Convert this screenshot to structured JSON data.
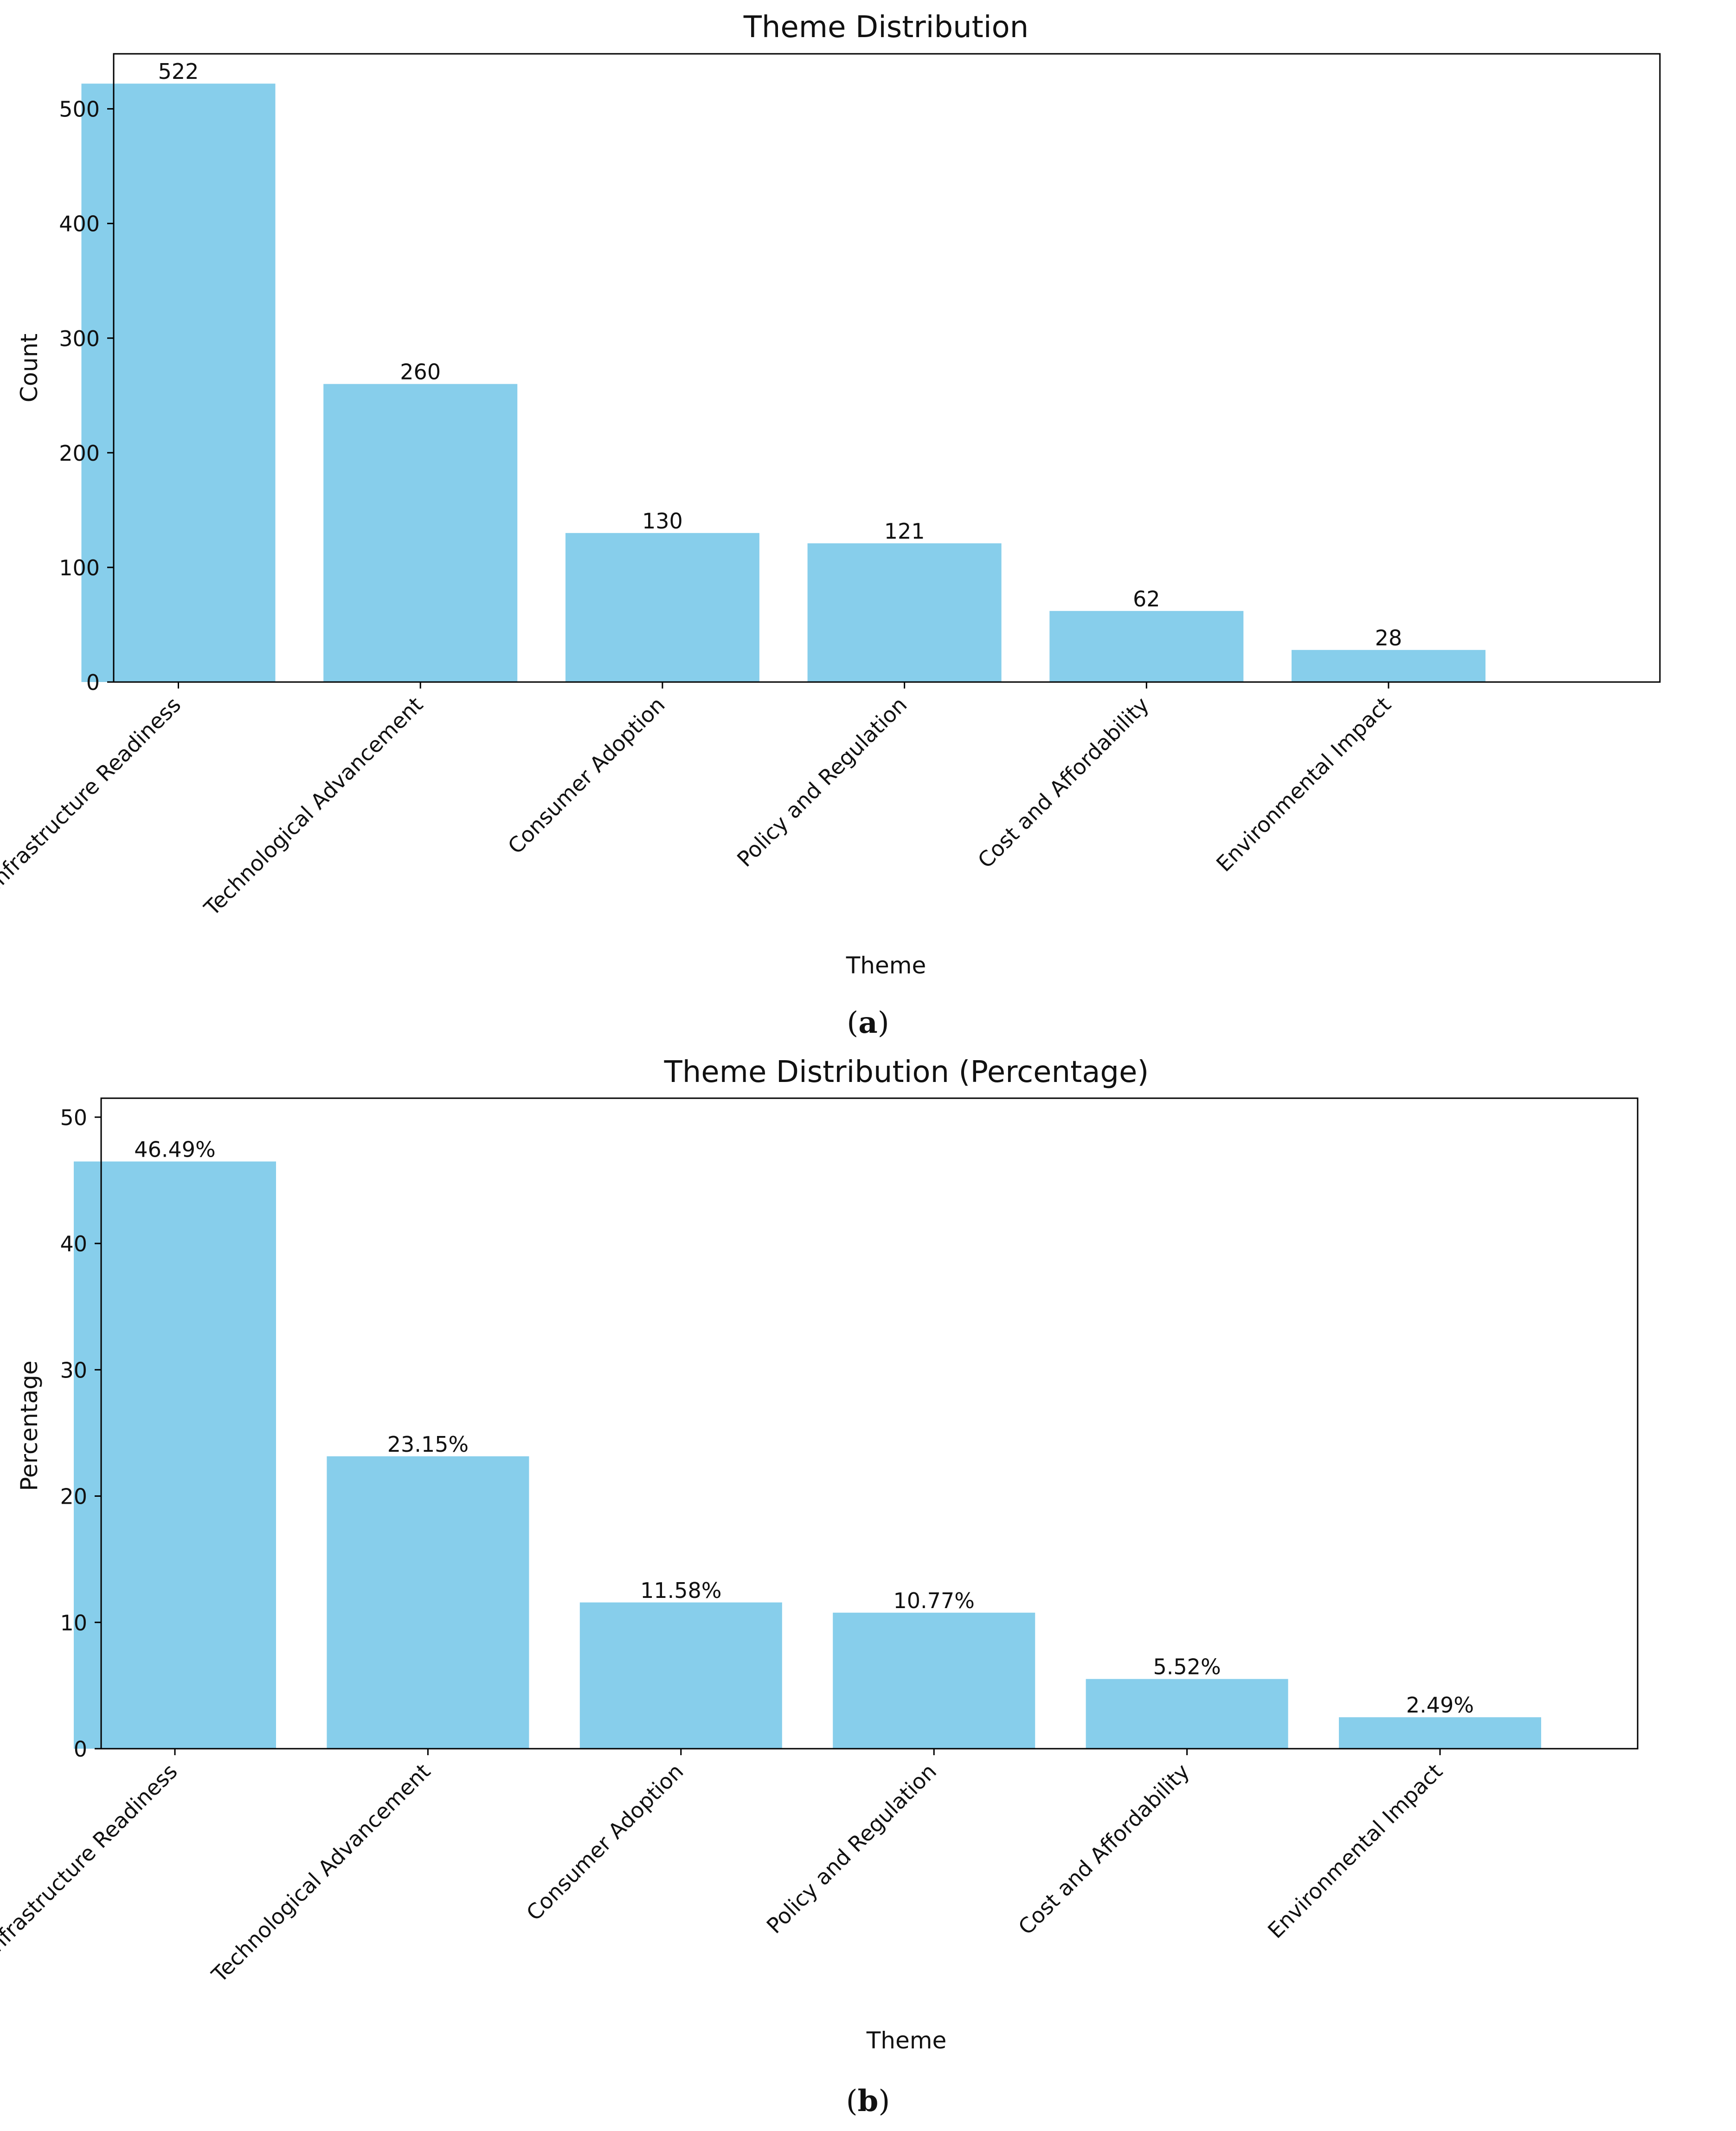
{
  "chart_data": [
    {
      "type": "bar",
      "panel_label": "a",
      "title": "Theme Distribution",
      "xlabel": "Theme",
      "ylabel": "Count",
      "categories": [
        "Infrastructure Readiness",
        "Technological Advancement",
        "Consumer Adoption",
        "Policy and Regulation",
        "Cost and Affordability",
        "Environmental Impact"
      ],
      "values": [
        522,
        260,
        130,
        121,
        62,
        28
      ],
      "value_labels": [
        "522",
        "260",
        "130",
        "121",
        "62",
        "28"
      ],
      "ylim": [
        0,
        548
      ],
      "yticks": [
        0,
        100,
        200,
        300,
        400,
        500
      ],
      "grid": false,
      "bar_color": "#87ceeb"
    },
    {
      "type": "bar",
      "panel_label": "b",
      "title": "Theme Distribution (Percentage)",
      "xlabel": "Theme",
      "ylabel": "Percentage",
      "categories": [
        "Infrastructure Readiness",
        "Technological Advancement",
        "Consumer Adoption",
        "Policy and Regulation",
        "Cost and Affordability",
        "Environmental Impact"
      ],
      "values": [
        46.49,
        23.15,
        11.58,
        10.77,
        5.52,
        2.49
      ],
      "value_labels": [
        "46.49%",
        "23.15%",
        "11.58%",
        "10.77%",
        "5.52%",
        "2.49%"
      ],
      "ylim": [
        0,
        51.5
      ],
      "yticks": [
        0,
        10,
        20,
        30,
        40,
        50
      ],
      "grid": false,
      "bar_color": "#87ceeb"
    }
  ]
}
